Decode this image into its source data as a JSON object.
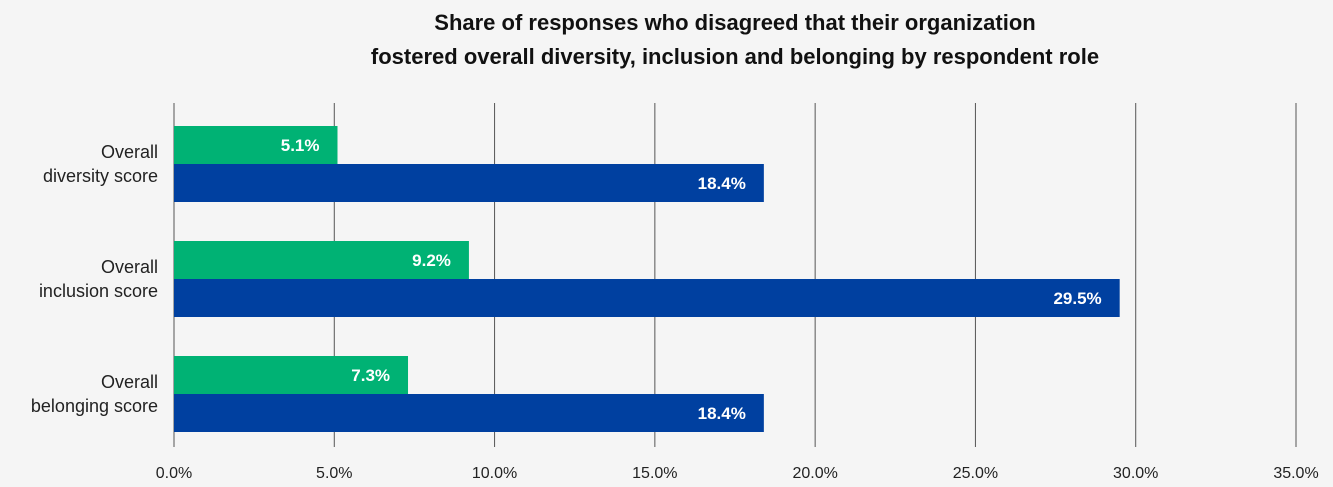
{
  "chart_data": {
    "type": "bar",
    "orientation": "horizontal",
    "title_lines": [
      "Share of responses who disagreed that their organization",
      "fostered overall diversity, inclusion and belonging by respondent role"
    ],
    "categories": [
      [
        "Overall",
        "diversity score"
      ],
      [
        "Overall",
        "inclusion score"
      ],
      [
        "Overall",
        "belonging score"
      ]
    ],
    "series": [
      {
        "color": "#00b274",
        "values": [
          5.1,
          9.2,
          7.3
        ],
        "labels": [
          "5.1%",
          "9.2%",
          "7.3%"
        ]
      },
      {
        "color": "#0040a0",
        "values": [
          18.4,
          29.5,
          18.4
        ],
        "labels": [
          "18.4%",
          "29.5%",
          "18.4%"
        ]
      }
    ],
    "xlim": [
      0,
      35
    ],
    "xticks": [
      0,
      5,
      10,
      15,
      20,
      25,
      30,
      35
    ],
    "xtick_labels": [
      "0.0%",
      "5.0%",
      "10.0%",
      "15.0%",
      "20.0%",
      "25.0%",
      "30.0%",
      "35.0%"
    ],
    "grid": "vertical",
    "legend": "none"
  }
}
